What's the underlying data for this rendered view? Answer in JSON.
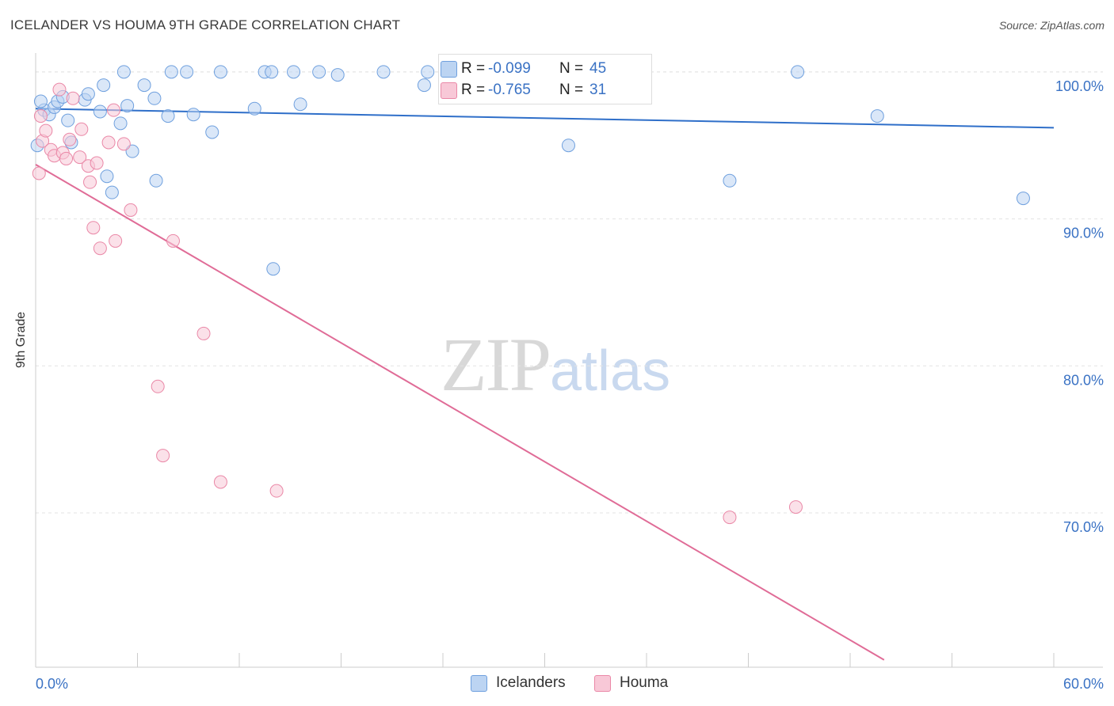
{
  "header": {
    "title": "ICELANDER VS HOUMA 9TH GRADE CORRELATION CHART",
    "source": "Source: ZipAtlas.com"
  },
  "watermark": {
    "zip": "ZIP",
    "atlas": "atlas"
  },
  "legend": {
    "rows": [
      {
        "series": "Icelanders",
        "r_label": "R =",
        "r_value": "-0.099",
        "n_label": "N =",
        "n_value": "45",
        "color": "#a9c8ee"
      },
      {
        "series": "Houma",
        "r_label": "R =",
        "r_value": "-0.765",
        "n_label": "N =",
        "n_value": "31",
        "color": "#f5b7c9"
      }
    ]
  },
  "bottom_legend": [
    {
      "label": "Icelanders",
      "color": "#a9c8ee"
    },
    {
      "label": "Houma",
      "color": "#f5b7c9"
    }
  ],
  "chart_data": {
    "type": "scatter",
    "title": "ICELANDER VS HOUMA 9TH GRADE CORRELATION CHART",
    "xlabel": "",
    "ylabel": "9th Grade",
    "xlim": [
      0,
      60
    ],
    "ylim": [
      59.5,
      101.5
    ],
    "x_tick_labels": [
      "0.0%",
      "60.0%"
    ],
    "y_ticks": [
      70,
      80,
      90,
      100
    ],
    "y_tick_labels": [
      "70.0%",
      "80.0%",
      "90.0%",
      "100.0%"
    ],
    "grid": true,
    "legend_position": "top-center",
    "series": [
      {
        "name": "Icelanders",
        "color": "#6fa0de",
        "fill": "#bcd4f2",
        "points": [
          [
            0.1,
            95.0
          ],
          [
            0.5,
            97.4
          ],
          [
            0.8,
            97.1
          ],
          [
            1.1,
            97.6
          ],
          [
            1.3,
            98.0
          ],
          [
            1.6,
            98.3
          ],
          [
            1.9,
            96.7
          ],
          [
            2.1,
            95.2
          ],
          [
            2.9,
            98.1
          ],
          [
            3.1,
            98.5
          ],
          [
            3.8,
            97.3
          ],
          [
            4.0,
            99.1
          ],
          [
            4.2,
            92.9
          ],
          [
            4.5,
            91.8
          ],
          [
            5.0,
            96.5
          ],
          [
            5.2,
            100.0
          ],
          [
            5.4,
            97.7
          ],
          [
            5.7,
            94.6
          ],
          [
            6.4,
            99.1
          ],
          [
            7.0,
            98.2
          ],
          [
            7.1,
            92.6
          ],
          [
            7.8,
            97.0
          ],
          [
            8.0,
            100.0
          ],
          [
            8.9,
            100.0
          ],
          [
            9.3,
            97.1
          ],
          [
            10.4,
            95.9
          ],
          [
            10.9,
            100.0
          ],
          [
            12.9,
            97.5
          ],
          [
            13.5,
            100.0
          ],
          [
            13.9,
            100.0
          ],
          [
            14.0,
            86.6
          ],
          [
            15.2,
            100.0
          ],
          [
            15.6,
            97.8
          ],
          [
            16.7,
            100.0
          ],
          [
            17.8,
            99.8
          ],
          [
            20.5,
            100.0
          ],
          [
            22.9,
            99.1
          ],
          [
            23.1,
            100.0
          ],
          [
            27.0,
            100.0
          ],
          [
            31.4,
            95.0
          ],
          [
            40.9,
            92.6
          ],
          [
            44.9,
            100.0
          ],
          [
            49.6,
            97.0
          ],
          [
            58.2,
            91.4
          ],
          [
            0.3,
            98.0
          ]
        ],
        "trend": {
          "x": [
            0,
            60
          ],
          "y": [
            97.5,
            96.2
          ]
        }
      },
      {
        "name": "Houma",
        "color": "#ea88a7",
        "fill": "#f8c8d7",
        "points": [
          [
            0.2,
            93.1
          ],
          [
            0.4,
            95.3
          ],
          [
            0.6,
            96.0
          ],
          [
            0.9,
            94.7
          ],
          [
            1.1,
            94.3
          ],
          [
            1.4,
            98.8
          ],
          [
            1.6,
            94.5
          ],
          [
            1.8,
            94.1
          ],
          [
            2.0,
            95.4
          ],
          [
            2.2,
            98.2
          ],
          [
            2.6,
            94.2
          ],
          [
            2.7,
            96.1
          ],
          [
            3.1,
            93.6
          ],
          [
            3.2,
            92.5
          ],
          [
            3.4,
            89.4
          ],
          [
            3.6,
            93.8
          ],
          [
            3.8,
            88.0
          ],
          [
            4.3,
            95.2
          ],
          [
            4.6,
            97.4
          ],
          [
            4.7,
            88.5
          ],
          [
            5.2,
            95.1
          ],
          [
            5.6,
            90.6
          ],
          [
            7.2,
            78.6
          ],
          [
            7.5,
            73.9
          ],
          [
            8.1,
            88.5
          ],
          [
            9.9,
            82.2
          ],
          [
            10.9,
            72.1
          ],
          [
            14.2,
            71.5
          ],
          [
            40.9,
            69.7
          ],
          [
            44.8,
            70.4
          ],
          [
            0.3,
            97.0
          ]
        ],
        "trend": {
          "x": [
            0,
            50
          ],
          "y": [
            93.7,
            60.0
          ]
        }
      }
    ]
  }
}
